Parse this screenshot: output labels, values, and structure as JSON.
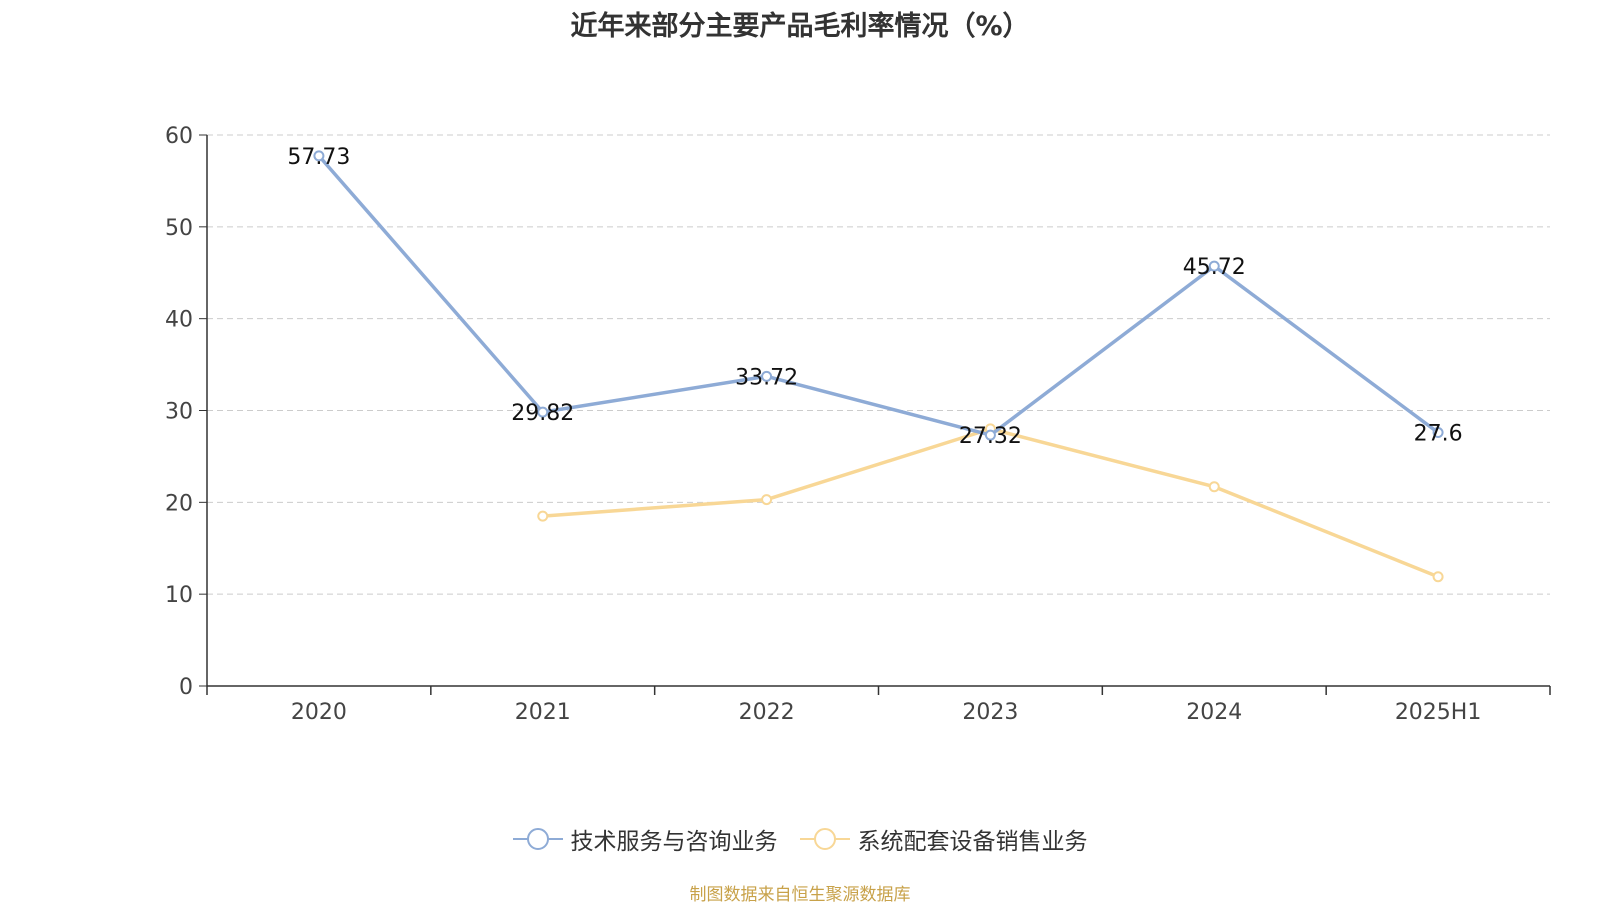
{
  "chart_data": {
    "type": "line",
    "title": "近年来部分主要产品毛利率情况（%）",
    "categories": [
      "2020",
      "2021",
      "2022",
      "2023",
      "2024",
      "2025H1"
    ],
    "ylim": [
      0,
      60
    ],
    "yticks": [
      0,
      10,
      20,
      30,
      40,
      50,
      60
    ],
    "grid": true,
    "legend_position": "bottom",
    "series": [
      {
        "name": "技术服务与咨询业务",
        "color": "#8eabd6",
        "values": [
          57.73,
          29.82,
          33.72,
          27.32,
          45.72,
          27.6
        ],
        "labels": [
          "57.73",
          "29.82",
          "33.72",
          "27.32",
          "45.72",
          "27.6"
        ]
      },
      {
        "name": "系统配套设备销售业务",
        "color": "#f8d796",
        "values": [
          null,
          18.5,
          20.3,
          28.0,
          21.7,
          11.9
        ],
        "labels": null
      }
    ]
  },
  "source_note": "制图数据来自恒生聚源数据库",
  "source_color": "#c8a24a"
}
